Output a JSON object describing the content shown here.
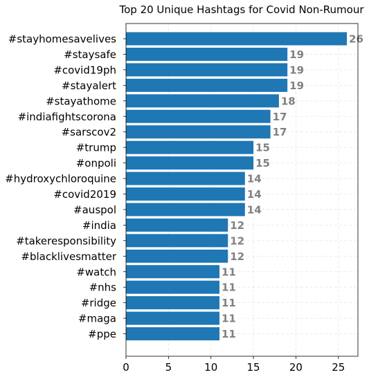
{
  "chart_data": {
    "type": "bar",
    "orientation": "horizontal",
    "title": "Top 20 Unique Hashtags for Covid Non-Rumour",
    "xlabel": "",
    "ylabel": "",
    "categories": [
      "#stayhomesavelives",
      "#staysafe",
      "#covid19ph",
      "#stayalert",
      "#stayathome",
      "#indiafightscorona",
      "#sarscov2",
      "#trump",
      "#onpoli",
      "#hydroxychloroquine",
      "#covid2019",
      "#auspol",
      "#india",
      "#takeresponsibility",
      "#blacklivesmatter",
      "#watch",
      "#nhs",
      "#ridge",
      "#maga",
      "#ppe"
    ],
    "values": [
      26,
      19,
      19,
      19,
      18,
      17,
      17,
      15,
      15,
      14,
      14,
      14,
      12,
      12,
      12,
      11,
      11,
      11,
      11,
      11
    ],
    "xlim": [
      0,
      27.3
    ],
    "xticks": [
      0,
      5,
      10,
      15,
      20,
      25
    ],
    "grid": true,
    "bar_color": "#1f77b4",
    "label_color": "#808080"
  }
}
